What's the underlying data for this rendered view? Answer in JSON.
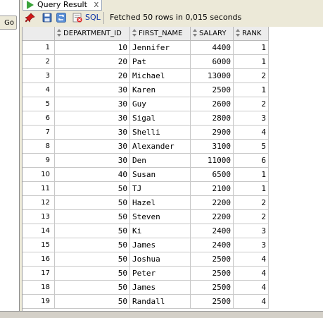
{
  "sidebar": {
    "go_label": "Go"
  },
  "tab": {
    "title": "Query Result",
    "close": "X"
  },
  "toolbar": {
    "sql_label": "SQL",
    "status": "Fetched 50 rows in 0,015 seconds"
  },
  "columns": [
    "DEPARTMENT_ID",
    "FIRST_NAME",
    "SALARY",
    "RANK"
  ],
  "rows": [
    {
      "n": "1",
      "dept": "10",
      "name": "Jennifer",
      "salary": "4400",
      "rank": "1"
    },
    {
      "n": "2",
      "dept": "20",
      "name": "Pat",
      "salary": "6000",
      "rank": "1"
    },
    {
      "n": "3",
      "dept": "20",
      "name": "Michael",
      "salary": "13000",
      "rank": "2"
    },
    {
      "n": "4",
      "dept": "30",
      "name": "Karen",
      "salary": "2500",
      "rank": "1"
    },
    {
      "n": "5",
      "dept": "30",
      "name": "Guy",
      "salary": "2600",
      "rank": "2"
    },
    {
      "n": "6",
      "dept": "30",
      "name": "Sigal",
      "salary": "2800",
      "rank": "3"
    },
    {
      "n": "7",
      "dept": "30",
      "name": "Shelli",
      "salary": "2900",
      "rank": "4"
    },
    {
      "n": "8",
      "dept": "30",
      "name": "Alexander",
      "salary": "3100",
      "rank": "5"
    },
    {
      "n": "9",
      "dept": "30",
      "name": "Den",
      "salary": "11000",
      "rank": "6"
    },
    {
      "n": "10",
      "dept": "40",
      "name": "Susan",
      "salary": "6500",
      "rank": "1"
    },
    {
      "n": "11",
      "dept": "50",
      "name": "TJ",
      "salary": "2100",
      "rank": "1"
    },
    {
      "n": "12",
      "dept": "50",
      "name": "Hazel",
      "salary": "2200",
      "rank": "2"
    },
    {
      "n": "13",
      "dept": "50",
      "name": "Steven",
      "salary": "2200",
      "rank": "2"
    },
    {
      "n": "14",
      "dept": "50",
      "name": "Ki",
      "salary": "2400",
      "rank": "3"
    },
    {
      "n": "15",
      "dept": "50",
      "name": "James",
      "salary": "2400",
      "rank": "3"
    },
    {
      "n": "16",
      "dept": "50",
      "name": "Joshua",
      "salary": "2500",
      "rank": "4"
    },
    {
      "n": "17",
      "dept": "50",
      "name": "Peter",
      "salary": "2500",
      "rank": "4"
    },
    {
      "n": "18",
      "dept": "50",
      "name": "James",
      "salary": "2500",
      "rank": "4"
    },
    {
      "n": "19",
      "dept": "50",
      "name": "Randall",
      "salary": "2500",
      "rank": "4"
    }
  ],
  "icons": {
    "tab": "play-icon",
    "toolbar": [
      "pin-icon",
      "save-icon",
      "refresh-icon",
      "delete-icon"
    ],
    "column_header": "sort-icon"
  },
  "colors": {
    "tab_play": "#3aa33a",
    "sql_text": "#0a32a6",
    "pin": "#d01818"
  }
}
